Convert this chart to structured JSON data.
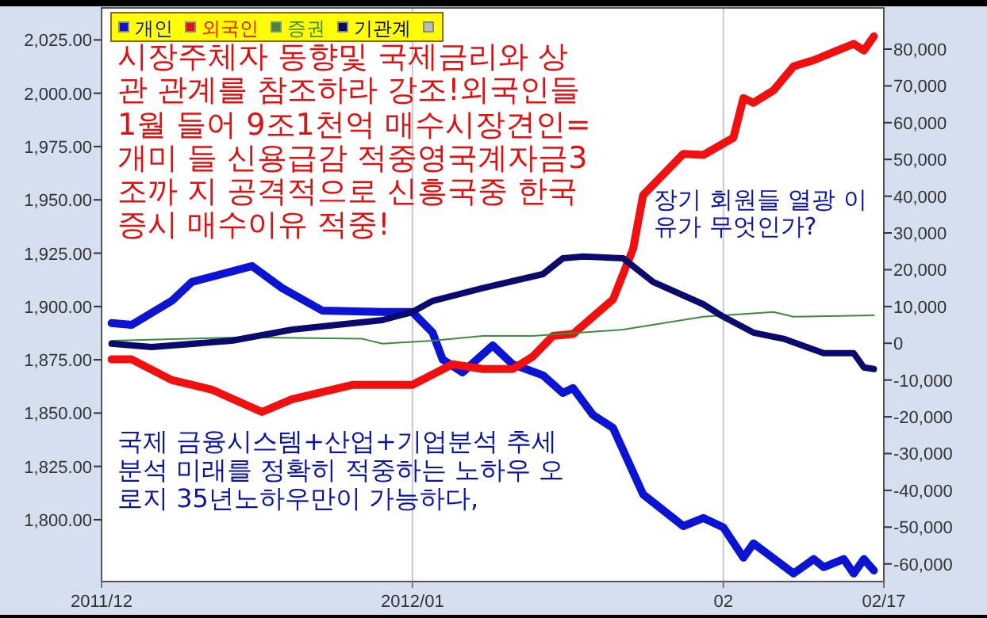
{
  "chart_data": {
    "type": "line",
    "xlim": [
      "2011-12-01",
      "2012-02-17"
    ],
    "xticks": [
      {
        "value": "2011-12-01",
        "label": "2011/12"
      },
      {
        "value": "2012-01-01",
        "label": "2012/01"
      },
      {
        "value": "2012-02-01",
        "label": "02"
      },
      {
        "value": "2012-02-17",
        "label": "02/17"
      }
    ],
    "ylim": [
      1771,
      2040
    ],
    "yticks": [
      {
        "value": 1800,
        "label": "1,800.00"
      },
      {
        "value": 1825,
        "label": "1,825.00"
      },
      {
        "value": 1850,
        "label": "1,850.00"
      },
      {
        "value": 1875,
        "label": "1,875.00"
      },
      {
        "value": 1900,
        "label": "1,900.00"
      },
      {
        "value": 1925,
        "label": "1,925.00"
      },
      {
        "value": 1950,
        "label": "1,950.00"
      },
      {
        "value": 1975,
        "label": "1,975.00"
      },
      {
        "value": 2000,
        "label": "2,000.00"
      },
      {
        "value": 2025,
        "label": "2,025.00"
      }
    ],
    "y2lim": [
      -64800,
      91200
    ],
    "y2ticks": [
      {
        "value": -60000,
        "label": "-60,000"
      },
      {
        "value": -50000,
        "label": "-50,000"
      },
      {
        "value": -40000,
        "label": "-40,000"
      },
      {
        "value": -30000,
        "label": "-30,000"
      },
      {
        "value": -20000,
        "label": "-20,000"
      },
      {
        "value": -10000,
        "label": "-10,000"
      },
      {
        "value": 0,
        "label": "0"
      },
      {
        "value": 10000,
        "label": "10,000"
      },
      {
        "value": 20000,
        "label": "20,000"
      },
      {
        "value": 30000,
        "label": "30,000"
      },
      {
        "value": 40000,
        "label": "40,000"
      },
      {
        "value": 50000,
        "label": "50,000"
      },
      {
        "value": 60000,
        "label": "60,000"
      },
      {
        "value": 70000,
        "label": "70,000"
      },
      {
        "value": 80000,
        "label": "80,000"
      }
    ],
    "grid": "x",
    "legend": "top left",
    "series": [
      {
        "name": "개인",
        "color": "#0a14d2",
        "axis": "y2",
        "x": [
          "2011-12-02",
          "2011-12-04",
          "2011-12-08",
          "2011-12-10",
          "2011-12-16",
          "2011-12-19",
          "2011-12-23",
          "2011-12-29",
          "2012-01-01",
          "2012-01-03",
          "2012-01-04",
          "2012-01-06",
          "2012-01-09",
          "2012-01-11",
          "2012-01-14",
          "2012-01-16",
          "2012-01-17",
          "2012-01-19",
          "2012-01-21",
          "2012-01-24",
          "2012-01-28",
          "2012-01-30",
          "2012-02-01",
          "2012-02-03",
          "2012-02-04",
          "2012-02-08",
          "2012-02-10",
          "2012-02-11",
          "2012-02-13",
          "2012-02-14",
          "2012-02-15",
          "2012-02-16"
        ],
        "values": [
          5500,
          5000,
          11500,
          16700,
          21000,
          15000,
          8900,
          8500,
          8500,
          2900,
          -4400,
          -7900,
          -600,
          -5700,
          -8700,
          -13500,
          -12200,
          -19500,
          -23000,
          -41100,
          -49700,
          -47500,
          -50100,
          -58300,
          -54400,
          -62600,
          -58700,
          -60900,
          -58700,
          -62600,
          -58700,
          -61800
        ]
      },
      {
        "name": "외국인",
        "color": "#f01010",
        "axis": "y2",
        "x": [
          "2011-12-02",
          "2011-12-04",
          "2011-12-08",
          "2011-12-12",
          "2011-12-17",
          "2011-12-20",
          "2011-12-26",
          "2012-01-01",
          "2012-01-05",
          "2012-01-08",
          "2012-01-11",
          "2012-01-13",
          "2012-01-15",
          "2012-01-17",
          "2012-01-21",
          "2012-01-23",
          "2012-01-24",
          "2012-01-28",
          "2012-01-30",
          "2012-02-02",
          "2012-02-03",
          "2012-02-04",
          "2012-02-06",
          "2012-02-08",
          "2012-02-10",
          "2012-02-12",
          "2012-02-14",
          "2012-02-15",
          "2012-02-16"
        ],
        "values": [
          -4400,
          -4400,
          -10000,
          -12600,
          -18700,
          -15200,
          -11300,
          -11300,
          -5700,
          -7000,
          -7000,
          -3600,
          2000,
          2500,
          11900,
          25700,
          40300,
          51500,
          51200,
          55900,
          66700,
          65400,
          68800,
          75300,
          77000,
          79200,
          81400,
          79600,
          83500
        ]
      },
      {
        "name": "증권",
        "color": "#3c8c3c",
        "axis": "y2",
        "x": [
          "2011-12-02",
          "2011-12-15",
          "2011-12-27",
          "2011-12-29",
          "2012-01-03",
          "2012-01-08",
          "2012-01-13",
          "2012-01-22",
          "2012-01-30",
          "2012-02-06",
          "2012-02-08",
          "2012-02-16"
        ],
        "values": [
          700,
          1600,
          1200,
          -100,
          700,
          2000,
          2000,
          3700,
          7200,
          8500,
          7200,
          7600
        ]
      },
      {
        "name": "기관계",
        "color": "#0a0a6e",
        "axis": "y2",
        "x": [
          "2011-12-02",
          "2011-12-06",
          "2011-12-14",
          "2011-12-20",
          "2011-12-29",
          "2012-01-01",
          "2012-01-03",
          "2012-01-08",
          "2012-01-14",
          "2012-01-16",
          "2012-01-18",
          "2012-01-22",
          "2012-01-25",
          "2012-01-30",
          "2012-02-01",
          "2012-02-04",
          "2012-02-07",
          "2012-02-11",
          "2012-02-14",
          "2012-02-15",
          "2012-02-16"
        ],
        "values": [
          -100,
          -1000,
          700,
          3700,
          6300,
          8500,
          11500,
          15000,
          18800,
          23100,
          23600,
          23100,
          16700,
          10600,
          7200,
          2900,
          1200,
          -2700,
          -2700,
          -6600,
          -7000
        ]
      }
    ],
    "annotations": [
      "시장주체자 동향및 국제금리와 상관 관계를 참조하라 강조!외국인들 1월 들어 9조1천억 매수시장견인=개미 들 신용급감 적중영국계자금3조까 지 공격적으로 신흥국중 한국증시 매수이유 적중!",
      "장기 회원들 열광 이유가 무엇인가?",
      "국제 금융시스템+산업+기업분석 추세 분석 미래를 정확히 적중하는 노하우 오로지 35년노하우만이 가능하다,"
    ]
  }
}
